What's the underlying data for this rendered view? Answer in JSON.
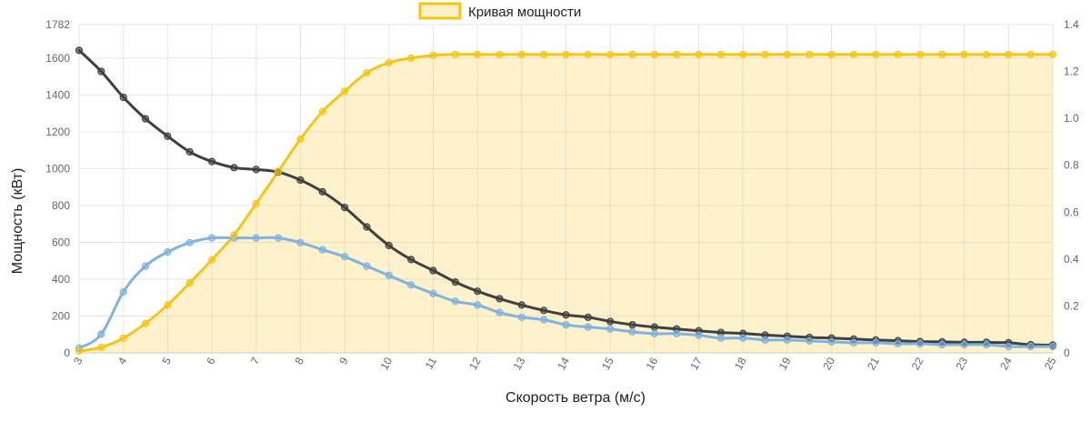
{
  "chart_data": {
    "type": "line",
    "legend": {
      "label": "Кривая мощности",
      "position": "top-center",
      "color": "#f5c518",
      "fill": "#fdf0c8"
    },
    "xlabel": "Скорость ветра (м/с)",
    "ylabel": "Мощность (кВт)",
    "xlim": [
      3,
      25
    ],
    "ylim": [
      0,
      1782
    ],
    "y2lim": [
      0,
      1.4
    ],
    "grid": true,
    "x_ticks": [
      3,
      4,
      5,
      6,
      7,
      8,
      9,
      10,
      11,
      12,
      13,
      14,
      15,
      16,
      17,
      18,
      19,
      20,
      21,
      22,
      23,
      24,
      25
    ],
    "y_ticks": [
      0,
      200,
      400,
      600,
      800,
      1000,
      1200,
      1400,
      1600,
      1782
    ],
    "y2_ticks": [
      0,
      0.2,
      0.4,
      0.6,
      0.8,
      1.0,
      1.2,
      1.4
    ],
    "y2_tick_labels": [
      "0",
      "0.2",
      "0.4",
      "0.6",
      "0.8",
      "1.0",
      "1.2",
      "1.4"
    ],
    "x": [
      3,
      3.5,
      4,
      4.5,
      5,
      5.5,
      6,
      6.5,
      7,
      7.5,
      8,
      8.5,
      9,
      9.5,
      10,
      10.5,
      11,
      11.5,
      12,
      12.5,
      13,
      13.5,
      14,
      14.5,
      15,
      15.5,
      16,
      16.5,
      17,
      17.5,
      18,
      18.5,
      19,
      19.5,
      20,
      20.5,
      21,
      21.5,
      22,
      22.5,
      23,
      23.5,
      24,
      24.5,
      25
    ],
    "series": [
      {
        "name": "Кривая мощности",
        "axis": "left",
        "color": "#f5c518",
        "fill": true,
        "values": [
          10,
          30,
          80,
          160,
          260,
          380,
          505,
          640,
          810,
          985,
          1160,
          1310,
          1420,
          1520,
          1575,
          1600,
          1615,
          1620,
          1620,
          1620,
          1620,
          1620,
          1620,
          1620,
          1620,
          1620,
          1620,
          1620,
          1620,
          1620,
          1620,
          1620,
          1620,
          1620,
          1620,
          1620,
          1620,
          1620,
          1620,
          1620,
          1620,
          1620,
          1620,
          1620,
          1620
        ]
      },
      {
        "axis": "right",
        "color": "#404040",
        "values": [
          1.29,
          1.2,
          1.09,
          0.998,
          0.924,
          0.857,
          0.816,
          0.79,
          0.782,
          0.771,
          0.737,
          0.687,
          0.62,
          0.537,
          0.458,
          0.398,
          0.351,
          0.302,
          0.263,
          0.231,
          0.204,
          0.181,
          0.162,
          0.152,
          0.134,
          0.12,
          0.11,
          0.102,
          0.094,
          0.087,
          0.083,
          0.076,
          0.071,
          0.066,
          0.063,
          0.059,
          0.055,
          0.052,
          0.048,
          0.047,
          0.045,
          0.045,
          0.043,
          0.035,
          0.033
        ]
      },
      {
        "axis": "right",
        "color": "#7fb3e0",
        "values": [
          0.02,
          0.08,
          0.26,
          0.37,
          0.43,
          0.47,
          0.49,
          0.49,
          0.49,
          0.49,
          0.47,
          0.44,
          0.41,
          0.37,
          0.33,
          0.29,
          0.253,
          0.22,
          0.204,
          0.172,
          0.152,
          0.141,
          0.12,
          0.11,
          0.102,
          0.09,
          0.082,
          0.082,
          0.075,
          0.063,
          0.063,
          0.055,
          0.055,
          0.051,
          0.047,
          0.043,
          0.043,
          0.039,
          0.039,
          0.035,
          0.035,
          0.035,
          0.027,
          0.027,
          0.027
        ]
      }
    ]
  }
}
